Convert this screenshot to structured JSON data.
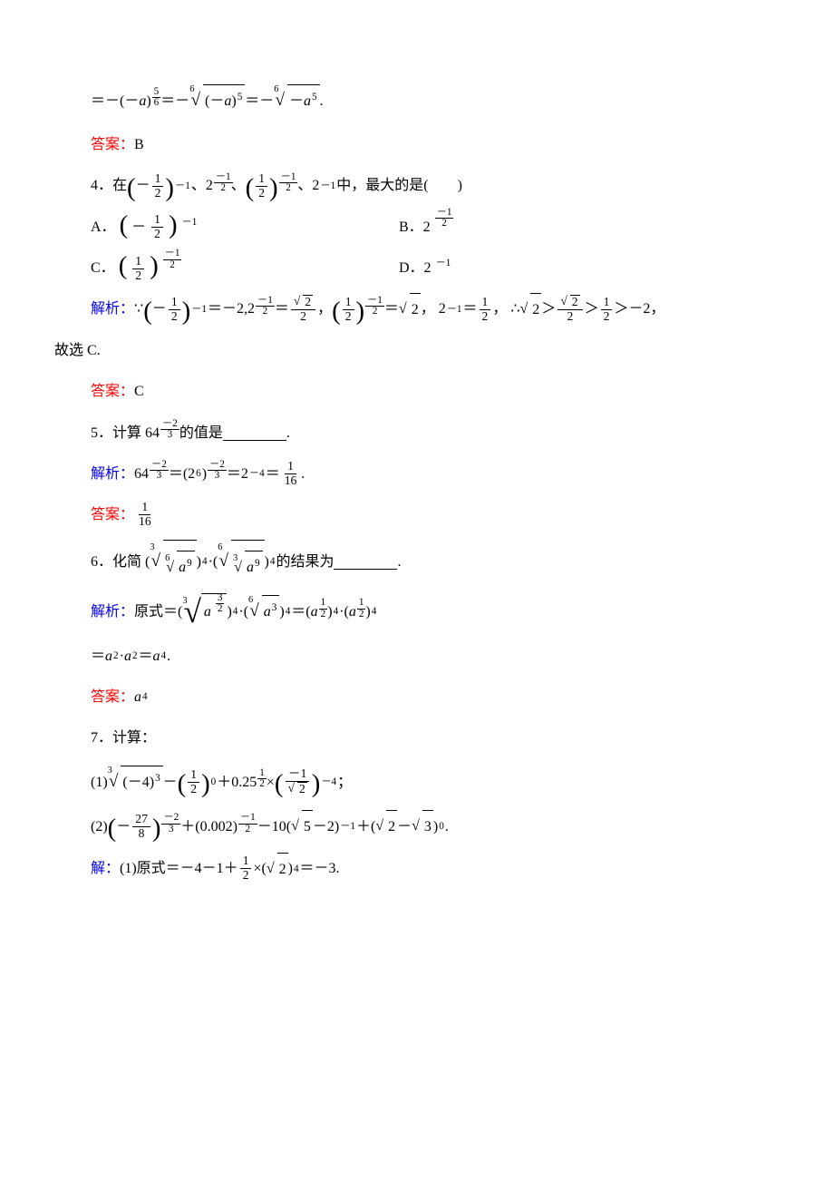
{
  "line1": {
    "prefix": "＝－(－",
    "var_a": "a",
    "close": ")",
    "exp_tfrac_num": "5",
    "exp_tfrac_den": "6",
    "eq1": "＝－",
    "root1_idx": "6",
    "root1_rad_l": "(－",
    "root1_var": "a",
    "root1_rad_r": ")",
    "root1_exp": "5",
    "eq2": "＝－",
    "root2_idx": "6",
    "root2_minus": "－",
    "root2_var": "a",
    "root2_exp": "5",
    "period": "."
  },
  "ans_B": {
    "label": "答案：",
    "val": "B"
  },
  "q4": {
    "num": "4．在",
    "p1_l": "(",
    "p1_neg": "－",
    "p1_num": "1",
    "p1_den": "2",
    "p1_r": ")",
    "p1_exp": "－1",
    "sep1": "、2",
    "e2_minus": "－",
    "e2_num": "1",
    "e2_den": "2",
    "sep2": "、",
    "p3_num": "1",
    "p3_den": "2",
    "p3_minus": "－",
    "p3_en": "1",
    "p3_ed": "2",
    "sep3": "、2",
    "e4": "－1",
    "tail": "中，最大的是(　　)"
  },
  "q4_A": {
    "label": "A．",
    "neg": "－",
    "num": "1",
    "den": "2",
    "exp": "－1"
  },
  "q4_B": {
    "label": "B．2",
    "minus": "－",
    "num": "1",
    "den": "2"
  },
  "q4_C": {
    "label": "C．",
    "num": "1",
    "den": "2",
    "minus": "－",
    "en": "1",
    "ed": "2"
  },
  "q4_D": {
    "label": "D．2",
    "exp": "－1"
  },
  "q4_sol": {
    "label": "解析：",
    "because": "∵",
    "t1_neg": "－",
    "t1_n": "1",
    "t1_d": "2",
    "t1_exp": "－1",
    "t1_eq": "＝－2,",
    "t2_base": "2",
    "t2_m": "－",
    "t2_n": "1",
    "t2_d": "2",
    "t2_eq": "＝",
    "t2_rn": "2",
    "t2_rd": "2",
    "t2_comma": "，",
    "t3_n": "1",
    "t3_d": "2",
    "t3_m": "－",
    "t3_en": "1",
    "t3_ed": "2",
    "t3_eq": "＝",
    "t3_r": "2",
    "t3_comma": "，",
    "t4": "2",
    "t4_exp": "－1",
    "t4_eq": "＝",
    "t4_n": "1",
    "t4_d": "2",
    "t4_comma": "，",
    "therefore": "∴",
    "chain_a": "2",
    "gt1": "＞",
    "chain_bn": "2",
    "chain_bd": "2",
    "gt2": "＞",
    "chain_cn": "1",
    "chain_cd": "2",
    "gt3": "＞－2，"
  },
  "q4_tail": "故选 C.",
  "ans_C": {
    "label": "答案：",
    "val": "C"
  },
  "q5": {
    "num": "5．计算 64",
    "m": "－",
    "en": "2",
    "ed": "3",
    "tail": "的值是",
    "period": "."
  },
  "q5_sol": {
    "label": "解析：",
    "b1": "64",
    "m1": "－",
    "n1": "2",
    "d1": "3",
    "eq1": "＝(2",
    "e6": "6",
    "rp": ")",
    "m2": "－",
    "n2": "2",
    "d2": "3",
    "eq2": "＝2",
    "e_neg4": "－4",
    "eq3": "＝",
    "fn": "1",
    "fd": "16",
    "period": "."
  },
  "ans_1_16": {
    "label": "答案：",
    "n": "1",
    "d": "16"
  },
  "q6": {
    "num": "6．化简 (",
    "r1_idx": "3",
    "r1_inner_idx": "6",
    "r1_var": "a",
    "r1_exp": "9",
    "mid1": ")",
    "pow4a": "4",
    "dot": "·(",
    "r2_idx": "6",
    "r2_inner_idx": "3",
    "r2_var": "a",
    "r2_exp": "9",
    "mid2": ")",
    "pow4b": "4",
    "tail": "的结果为",
    "period": "."
  },
  "q6_sol": {
    "label": "解析：",
    "pre": "原式＝(",
    "r1_idx": "3",
    "r1_var": "a",
    "r1_en": "3",
    "r1_ed": "2",
    "rp1": ")",
    "p4a": "4",
    "dot": "·(",
    "r2_idx": "6",
    "r2_var": "a",
    "r2_exp": "3",
    "rp2": ")",
    "p4b": "4",
    "eq": "＝(",
    "a1": "a",
    "a1n": "1",
    "a1d": "2",
    "rp3": ")",
    "p4c": "4",
    "dot2": "·(",
    "a2": "a",
    "a2n": "1",
    "a2d": "2",
    "rp4": ")",
    "p4d": "4"
  },
  "q6_sol2": {
    "eq": "＝",
    "a": "a",
    "e2a": "2",
    "dot": "·",
    "a2": "a",
    "e2b": "2",
    "eq2": "＝",
    "a3": "a",
    "e4": "4",
    "period": "."
  },
  "ans_a4": {
    "label": "答案：",
    "a": "a",
    "e": "4"
  },
  "q7": {
    "num": "7．计算："
  },
  "q7_1": {
    "label": "(1)",
    "ridx": "3",
    "rad_l": "(－4)",
    "rad_exp": "3",
    "minus": "－",
    "pn": "1",
    "pd": "2",
    "pexp": "0",
    "plus": "＋0.25",
    "hn": "1",
    "hd": "2",
    "times": "×",
    "qn": "－1",
    "qd_rad": "2",
    "qexp": "－4",
    "semi": "；"
  },
  "q7_2": {
    "label": "(2)",
    "neg": "－",
    "pn": "27",
    "pd": "8",
    "em1": "－",
    "en1": "2",
    "ed1": "3",
    "plus1": "＋(0.002)",
    "em2": "－",
    "en2": "1",
    "ed2": "2",
    "minus1": "－10(",
    "r5": "5",
    "m2": "－2)",
    "eneg1": "－1",
    "plus2": "＋(",
    "r2": "2",
    "m": "－",
    "r3": "3",
    "rp": ")",
    "e0": "0",
    "period": "."
  },
  "q7_sol1": {
    "label": "解：",
    "pre": "(1)原式＝－4－1＋",
    "fn": "1",
    "fd": "2",
    "times": "×(",
    "r2": "2",
    "rp": ")",
    "e4": "4",
    "eq": "＝－3."
  },
  "colors": {
    "red": "#ff0000",
    "blue": "#0000ff",
    "text": "#000000",
    "bg": "#ffffff"
  }
}
